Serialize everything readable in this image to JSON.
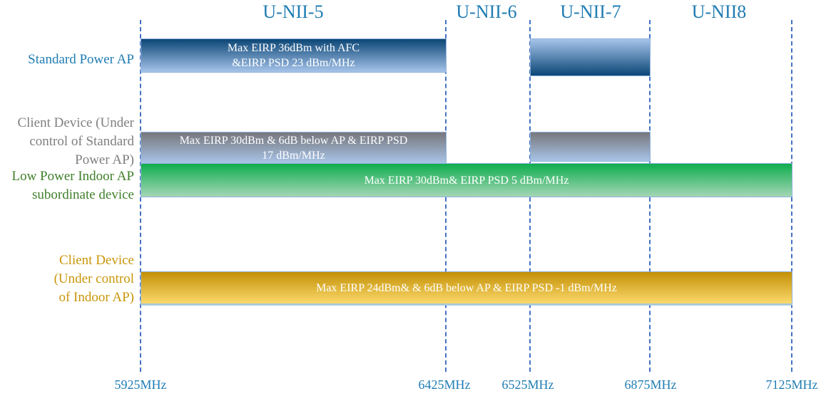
{
  "bands": [
    "U-NII-5",
    "U-NII-6",
    "U-NII-7",
    "U-NII8"
  ],
  "frequencies": [
    "5925MHz",
    "6425MHz",
    "6525MHz",
    "6875MHz",
    "7125MHz"
  ],
  "rows": {
    "standard_power_ap": {
      "label": "Standard Power AP",
      "text": "Max EIRP 36dBm with AFC\n&EIRP PSD 23 dBm/MHz",
      "color": "#1f7cb3"
    },
    "client_sp": {
      "label": "Client Device (Under\ncontrol of Standard\nPower AP)",
      "text": "Max EIRP 30dBm & 6dB below AP & EIRP PSD\n17 dBm/MHz",
      "color": "#7f7f7f"
    },
    "lpi_ap": {
      "label": "Low Power Indoor AP\nsubordinate device",
      "text": "Max EIRP 30dBm& EIRP PSD 5 dBm/MHz",
      "color": "#3f7f2a"
    },
    "client_indoor": {
      "label": "Client Device\n(Under control\nof Indoor AP)",
      "text": "Max EIRP 24dBm& & 6dB below AP & EIRP PSD -1 dBm/MHz",
      "color": "#c8960a"
    }
  }
}
